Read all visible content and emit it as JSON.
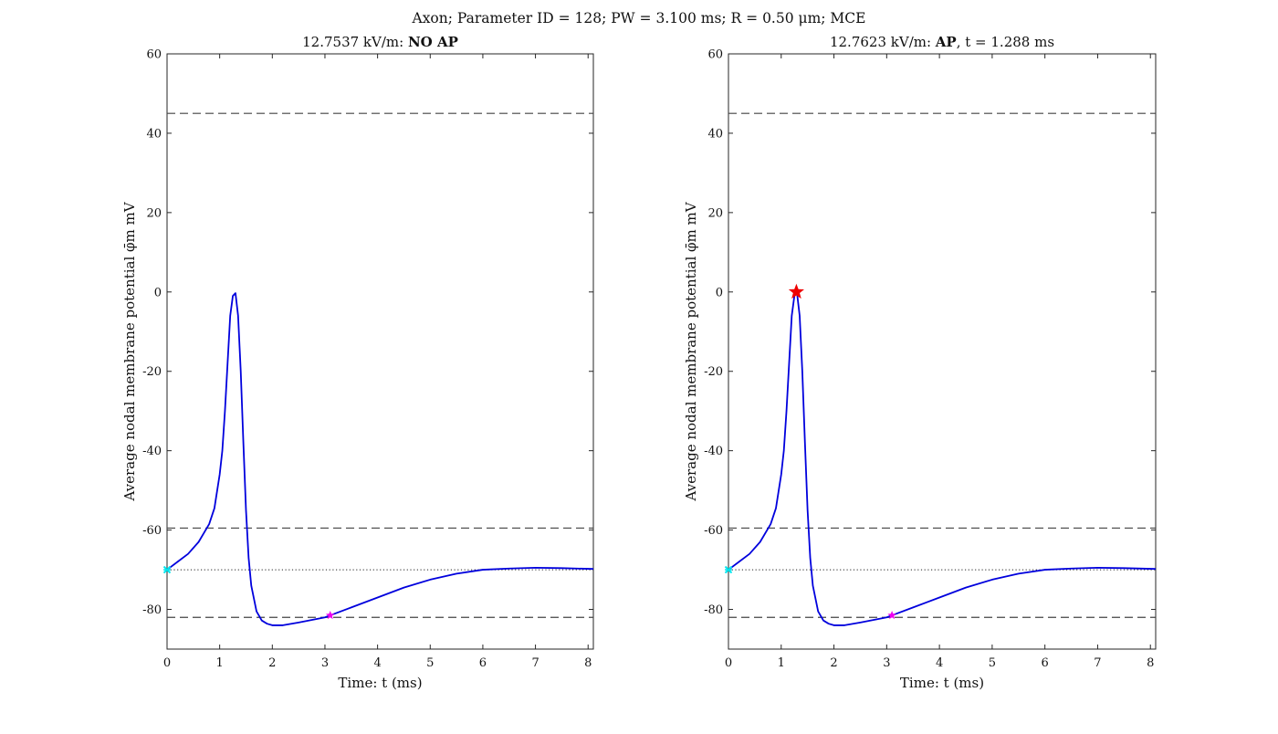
{
  "figure": {
    "title": "Axon; Parameter ID = 128; PW = 3.100 ms; R = 0.50 μm; MCE"
  },
  "styles": {
    "trace_color": "#0000dd",
    "dashed_color": "#444444",
    "dotted_color": "#222222",
    "start_marker_color": "#00e5ee",
    "end_marker_color": "#ee00ee",
    "peak_marker_color": "#ee0000"
  },
  "chart_data": [
    {
      "type": "line",
      "title_prefix": "12.7537 kV/m: ",
      "title_bold": "NO AP",
      "title_suffix": "",
      "xlabel": "Time:  t (ms)",
      "ylabel": "Average nodal membrane potential φ̄m mV",
      "xlim": [
        0,
        8.1
      ],
      "ylim": [
        -90,
        60
      ],
      "xticks": [
        0,
        1,
        2,
        3,
        4,
        5,
        6,
        7,
        8
      ],
      "yticks": [
        -80,
        -60,
        -40,
        -20,
        0,
        20,
        40,
        60
      ],
      "grid": false,
      "reference_lines": [
        {
          "y": 45,
          "style": "dashed"
        },
        {
          "y": -59.5,
          "style": "dashed"
        },
        {
          "y": -82,
          "style": "dashed"
        },
        {
          "y": -70,
          "style": "dotted"
        }
      ],
      "series": [
        {
          "x": [
            0,
            0.2,
            0.4,
            0.6,
            0.8,
            0.9,
            1.0,
            1.05,
            1.1,
            1.15,
            1.2,
            1.25,
            1.3,
            1.35,
            1.4,
            1.45,
            1.5,
            1.55,
            1.6,
            1.7,
            1.8,
            1.9,
            2.0,
            2.2,
            2.5,
            3.0,
            3.1,
            3.5,
            4.0,
            4.5,
            5.0,
            5.5,
            6.0,
            6.5,
            7.0,
            7.5,
            8.1
          ],
          "y": [
            -70,
            -68,
            -66,
            -63,
            -58.5,
            -54.5,
            -46,
            -40,
            -30,
            -18,
            -6,
            -1,
            -0.3,
            -6,
            -20,
            -38,
            -55,
            -67,
            -74,
            -80.5,
            -82.8,
            -83.6,
            -84,
            -84,
            -83.3,
            -82,
            -81.5,
            -79.5,
            -77,
            -74.5,
            -72.5,
            -71,
            -70,
            -69.7,
            -69.5,
            -69.6,
            -69.8
          ]
        }
      ],
      "markers": [
        {
          "x": 0,
          "y": -70,
          "kind": "start",
          "shape": "x"
        },
        {
          "x": 3.1,
          "y": -81.5,
          "kind": "end",
          "shape": "star-small"
        }
      ]
    },
    {
      "type": "line",
      "title_prefix": "12.7623 kV/m: ",
      "title_bold": "AP",
      "title_suffix": ", t = 1.288 ms",
      "xlabel": "Time:  t (ms)",
      "ylabel": "Average nodal membrane potential φ̄m mV",
      "xlim": [
        0,
        8.1
      ],
      "ylim": [
        -90,
        60
      ],
      "xticks": [
        0,
        1,
        2,
        3,
        4,
        5,
        6,
        7,
        8
      ],
      "yticks": [
        -80,
        -60,
        -40,
        -20,
        0,
        20,
        40,
        60
      ],
      "grid": false,
      "reference_lines": [
        {
          "y": 45,
          "style": "dashed"
        },
        {
          "y": -59.5,
          "style": "dashed"
        },
        {
          "y": -82,
          "style": "dashed"
        },
        {
          "y": -70,
          "style": "dotted"
        }
      ],
      "series": [
        {
          "x": [
            0,
            0.2,
            0.4,
            0.6,
            0.8,
            0.9,
            1.0,
            1.05,
            1.1,
            1.15,
            1.2,
            1.25,
            1.3,
            1.35,
            1.4,
            1.45,
            1.5,
            1.55,
            1.6,
            1.7,
            1.8,
            1.9,
            2.0,
            2.2,
            2.5,
            3.0,
            3.1,
            3.5,
            4.0,
            4.5,
            5.0,
            5.5,
            6.0,
            6.5,
            7.0,
            7.5,
            8.1
          ],
          "y": [
            -70,
            -68,
            -66,
            -63,
            -58.5,
            -54.5,
            -46,
            -40,
            -30,
            -18,
            -6,
            -1,
            -0.3,
            -6,
            -20,
            -38,
            -55,
            -67,
            -74,
            -80.5,
            -82.8,
            -83.6,
            -84,
            -84,
            -83.3,
            -82,
            -81.5,
            -79.5,
            -77,
            -74.5,
            -72.5,
            -71,
            -70,
            -69.7,
            -69.5,
            -69.6,
            -69.8
          ]
        }
      ],
      "markers": [
        {
          "x": 0,
          "y": -70,
          "kind": "start",
          "shape": "x"
        },
        {
          "x": 3.1,
          "y": -81.5,
          "kind": "end",
          "shape": "star-small"
        },
        {
          "x": 1.288,
          "y": 0,
          "kind": "peak",
          "shape": "star-large"
        }
      ]
    }
  ]
}
